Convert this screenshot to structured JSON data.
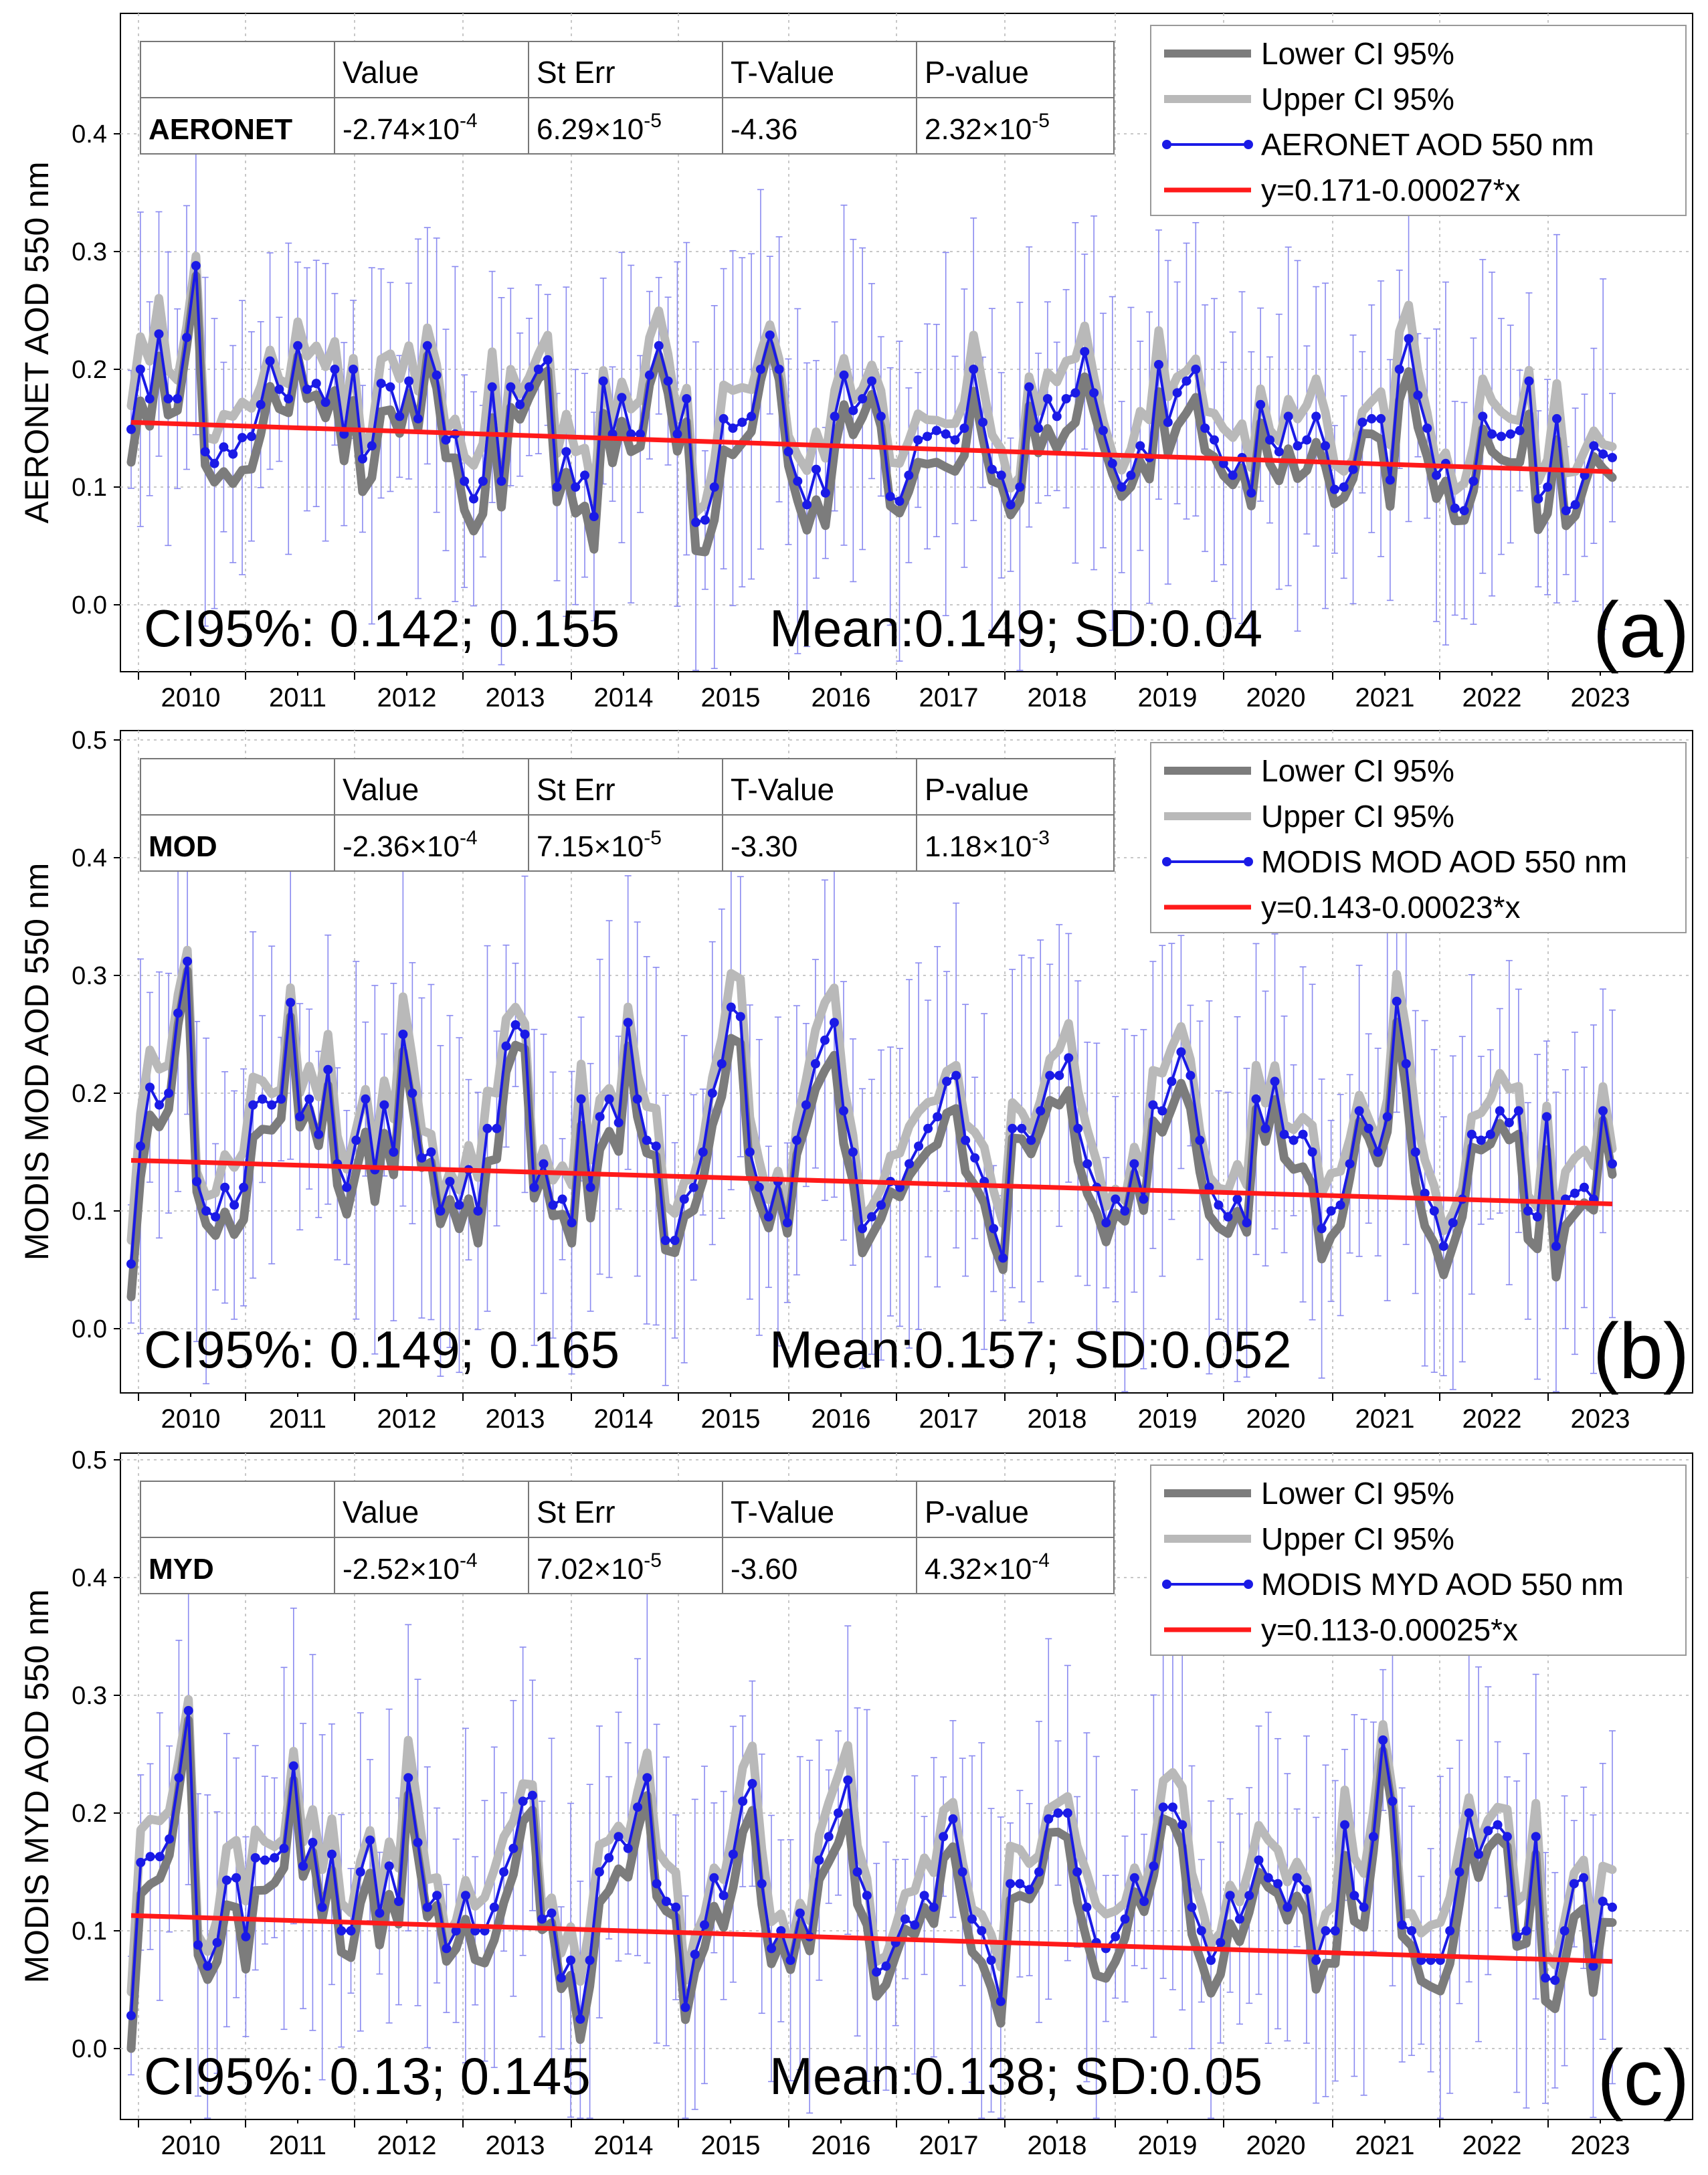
{
  "colors": {
    "lower_ci": "#7c7c7c",
    "upper_ci": "#b9b9b9",
    "series": "#1a1ae6",
    "errbar": "#8a8af0",
    "trend": "#ff1a1a",
    "grid": "#c8c8c8"
  },
  "chart_data": [
    {
      "type": "line",
      "panel_label": "(a)",
      "ylabel": "AERONET AOD 550 nm",
      "ylim": [
        -0.05,
        0.5
      ],
      "xlim": [
        2009.3,
        2023.4
      ],
      "yticks": [
        "0.0",
        "0.1",
        "0.2",
        "0.3",
        "0.4"
      ],
      "year_labels": [
        "2010",
        "2011",
        "2012",
        "2013",
        "2014",
        "2015",
        "2016",
        "2017",
        "2018",
        "2019",
        "2020",
        "2021",
        "2022",
        "2023"
      ],
      "grid": true,
      "legend_position": "top-right",
      "legend": [
        "Lower CI 95%",
        "Upper CI 95%",
        "AERONET AOD 550 nm",
        "y=0.171-0.00027*x"
      ],
      "stats_table": {
        "headers": [
          "",
          "Value",
          "St Err",
          "T-Value",
          "P-value"
        ],
        "row": [
          {
            "t": "AERONET",
            "b": true
          },
          {
            "t": "-2.74×10",
            "s": "-4"
          },
          {
            "t": "6.29×10",
            "s": "-5"
          },
          {
            "t": "-4.36"
          },
          {
            "t": "2.32×10",
            "s": "-5"
          }
        ]
      },
      "ci_text": "CI95%: 0.142; 0.155",
      "summary_text": "Mean:0.149; SD:0.04",
      "trend": {
        "start": 0.155,
        "end": 0.113
      },
      "series_values": [
        0.149,
        0.2,
        0.175,
        0.23,
        0.175,
        0.175,
        0.227,
        0.288,
        0.13,
        0.12,
        0.134,
        0.128,
        0.142,
        0.143,
        0.17,
        0.207,
        0.183,
        0.175,
        0.22,
        0.183,
        0.188,
        0.172,
        0.2,
        0.145,
        0.2,
        0.124,
        0.135,
        0.188,
        0.185,
        0.16,
        0.19,
        0.158,
        0.22,
        0.195,
        0.14,
        0.145,
        0.105,
        0.09,
        0.105,
        0.185,
        0.105,
        0.185,
        0.17,
        0.185,
        0.2,
        0.208,
        0.1,
        0.13,
        0.1,
        0.11,
        0.075,
        0.19,
        0.145,
        0.176,
        0.145,
        0.145,
        0.195,
        0.22,
        0.19,
        0.145,
        0.175,
        0.07,
        0.072,
        0.1,
        0.158,
        0.15,
        0.155,
        0.16,
        0.2,
        0.229,
        0.2,
        0.13,
        0.105,
        0.085,
        0.115,
        0.095,
        0.16,
        0.195,
        0.165,
        0.175,
        0.19,
        0.16,
        0.092,
        0.088,
        0.11,
        0.14,
        0.143,
        0.148,
        0.145,
        0.14,
        0.15,
        0.2,
        0.155,
        0.115,
        0.11,
        0.085,
        0.1,
        0.185,
        0.15,
        0.175,
        0.16,
        0.175,
        0.18,
        0.215,
        0.18,
        0.148,
        0.12,
        0.1,
        0.11,
        0.135,
        0.125,
        0.204,
        0.155,
        0.18,
        0.19,
        0.2,
        0.15,
        0.14,
        0.12,
        0.11,
        0.125,
        0.095,
        0.17,
        0.14,
        0.13,
        0.16,
        0.135,
        0.14,
        0.16,
        0.135,
        0.098,
        0.1,
        0.115,
        0.155,
        0.158,
        0.158,
        0.106,
        0.2,
        0.226,
        0.178,
        0.15,
        0.11,
        0.12,
        0.082,
        0.08,
        0.105,
        0.16,
        0.145,
        0.143,
        0.145,
        0.148,
        0.19,
        0.09,
        0.1,
        0.158,
        0.08,
        0.085,
        0.11,
        0.135,
        0.128,
        0.125
      ]
    },
    {
      "type": "line",
      "panel_label": "(b)",
      "ylabel": "MODIS MOD AOD 550 nm",
      "ylim": [
        -0.05,
        0.5
      ],
      "xlim": [
        2009.3,
        2023.4
      ],
      "yticks": [
        "0.0",
        "0.1",
        "0.2",
        "0.3",
        "0.4",
        "0.5"
      ],
      "year_labels": [
        "2010",
        "2011",
        "2012",
        "2013",
        "2014",
        "2015",
        "2016",
        "2017",
        "2018",
        "2019",
        "2020",
        "2021",
        "2022",
        "2023"
      ],
      "grid": true,
      "legend_position": "top-right",
      "legend": [
        "Lower CI 95%",
        "Upper CI 95%",
        "MODIS MOD AOD 550 nm",
        "y=0.143-0.00023*x"
      ],
      "stats_table": {
        "headers": [
          "",
          "Value",
          "St Err",
          "T-Value",
          "P-value"
        ],
        "row": [
          {
            "t": "MOD",
            "b": true
          },
          {
            "t": "-2.36×10",
            "s": "-4"
          },
          {
            "t": "7.15×10",
            "s": "-5"
          },
          {
            "t": "-3.30"
          },
          {
            "t": "1.18×10",
            "s": "-3"
          }
        ]
      },
      "ci_text": "CI95%: 0.149; 0.165",
      "summary_text": "Mean:0.157; SD:0.052",
      "trend": {
        "start": 0.143,
        "end": 0.106
      },
      "series_values": [
        0.055,
        0.155,
        0.205,
        0.19,
        0.2,
        0.268,
        0.312,
        0.125,
        0.1,
        0.095,
        0.12,
        0.105,
        0.12,
        0.19,
        0.195,
        0.19,
        0.195,
        0.277,
        0.18,
        0.195,
        0.165,
        0.22,
        0.14,
        0.12,
        0.16,
        0.195,
        0.135,
        0.19,
        0.15,
        0.25,
        0.2,
        0.145,
        0.15,
        0.1,
        0.125,
        0.105,
        0.135,
        0.1,
        0.17,
        0.17,
        0.24,
        0.258,
        0.25,
        0.12,
        0.14,
        0.105,
        0.11,
        0.09,
        0.195,
        0.12,
        0.18,
        0.195,
        0.175,
        0.26,
        0.195,
        0.16,
        0.155,
        0.075,
        0.075,
        0.11,
        0.12,
        0.15,
        0.2,
        0.225,
        0.273,
        0.265,
        0.15,
        0.12,
        0.095,
        0.125,
        0.09,
        0.16,
        0.19,
        0.225,
        0.245,
        0.26,
        0.185,
        0.15,
        0.085,
        0.095,
        0.105,
        0.125,
        0.12,
        0.14,
        0.155,
        0.17,
        0.18,
        0.21,
        0.215,
        0.16,
        0.145,
        0.125,
        0.085,
        0.06,
        0.17,
        0.17,
        0.16,
        0.185,
        0.215,
        0.215,
        0.23,
        0.17,
        0.14,
        0.12,
        0.09,
        0.11,
        0.1,
        0.14,
        0.11,
        0.19,
        0.185,
        0.21,
        0.235,
        0.215,
        0.16,
        0.12,
        0.105,
        0.095,
        0.11,
        0.09,
        0.195,
        0.17,
        0.21,
        0.165,
        0.16,
        0.165,
        0.15,
        0.085,
        0.1,
        0.105,
        0.14,
        0.185,
        0.17,
        0.15,
        0.18,
        0.278,
        0.225,
        0.15,
        0.115,
        0.1,
        0.07,
        0.09,
        0.11,
        0.165,
        0.16,
        0.165,
        0.185,
        0.175,
        0.185,
        0.1,
        0.095,
        0.18,
        0.07,
        0.11,
        0.115,
        0.12,
        0.11,
        0.185,
        0.14
      ]
    },
    {
      "type": "line",
      "panel_label": "(c)",
      "ylabel": "MODIS MYD AOD 550 nm",
      "ylim": [
        -0.05,
        0.5
      ],
      "xlim": [
        2009.3,
        2023.4
      ],
      "yticks": [
        "0.0",
        "0.1",
        "0.2",
        "0.3",
        "0.4",
        "0.5"
      ],
      "year_labels": [
        "2010",
        "2011",
        "2012",
        "2013",
        "2014",
        "2015",
        "2016",
        "2017",
        "2018",
        "2019",
        "2020",
        "2021",
        "2022",
        "2023"
      ],
      "grid": true,
      "legend_position": "top-right",
      "legend": [
        "Lower CI 95%",
        "Upper CI 95%",
        " MODIS MYD AOD 550 nm",
        "y=0.113-0.00025*x"
      ],
      "stats_table": {
        "headers": [
          "",
          "Value",
          "St Err",
          "T-Value",
          "P-value"
        ],
        "row": [
          {
            "t": "MYD",
            "b": true
          },
          {
            "t": "-2.52×10",
            "s": "-4"
          },
          {
            "t": "7.02×10",
            "s": "-5"
          },
          {
            "t": "-3.60"
          },
          {
            "t": "4.32×10",
            "s": "-4"
          }
        ]
      },
      "ci_text": "CI95%: 0.13; 0.145",
      "summary_text": "Mean:0.138; SD:0.05",
      "trend": {
        "start": 0.113,
        "end": 0.074
      },
      "series_values": [
        0.028,
        0.158,
        0.163,
        0.163,
        0.178,
        0.23,
        0.287,
        0.088,
        0.07,
        0.09,
        0.143,
        0.145,
        0.095,
        0.162,
        0.16,
        0.162,
        0.17,
        0.24,
        0.155,
        0.175,
        0.12,
        0.165,
        0.1,
        0.1,
        0.15,
        0.177,
        0.115,
        0.155,
        0.125,
        0.23,
        0.175,
        0.12,
        0.13,
        0.085,
        0.1,
        0.13,
        0.1,
        0.1,
        0.12,
        0.15,
        0.17,
        0.21,
        0.215,
        0.11,
        0.115,
        0.06,
        0.075,
        0.025,
        0.075,
        0.15,
        0.162,
        0.18,
        0.17,
        0.205,
        0.23,
        0.14,
        0.125,
        0.12,
        0.035,
        0.08,
        0.105,
        0.145,
        0.13,
        0.165,
        0.21,
        0.225,
        0.14,
        0.085,
        0.1,
        0.075,
        0.115,
        0.095,
        0.16,
        0.18,
        0.2,
        0.228,
        0.15,
        0.13,
        0.065,
        0.07,
        0.09,
        0.11,
        0.105,
        0.13,
        0.12,
        0.18,
        0.195,
        0.15,
        0.11,
        0.1,
        0.075,
        0.04,
        0.14,
        0.14,
        0.135,
        0.15,
        0.195,
        0.2,
        0.2,
        0.15,
        0.12,
        0.09,
        0.085,
        0.095,
        0.11,
        0.145,
        0.125,
        0.155,
        0.205,
        0.205,
        0.19,
        0.12,
        0.1,
        0.075,
        0.09,
        0.13,
        0.11,
        0.13,
        0.16,
        0.145,
        0.14,
        0.12,
        0.145,
        0.135,
        0.075,
        0.1,
        0.1,
        0.19,
        0.13,
        0.12,
        0.18,
        0.262,
        0.21,
        0.105,
        0.1,
        0.075,
        0.075,
        0.075,
        0.1,
        0.15,
        0.2,
        0.165,
        0.185,
        0.19,
        0.18,
        0.095,
        0.1,
        0.18,
        0.06,
        0.058,
        0.1,
        0.14,
        0.145,
        0.07,
        0.125,
        0.12
      ]
    }
  ]
}
